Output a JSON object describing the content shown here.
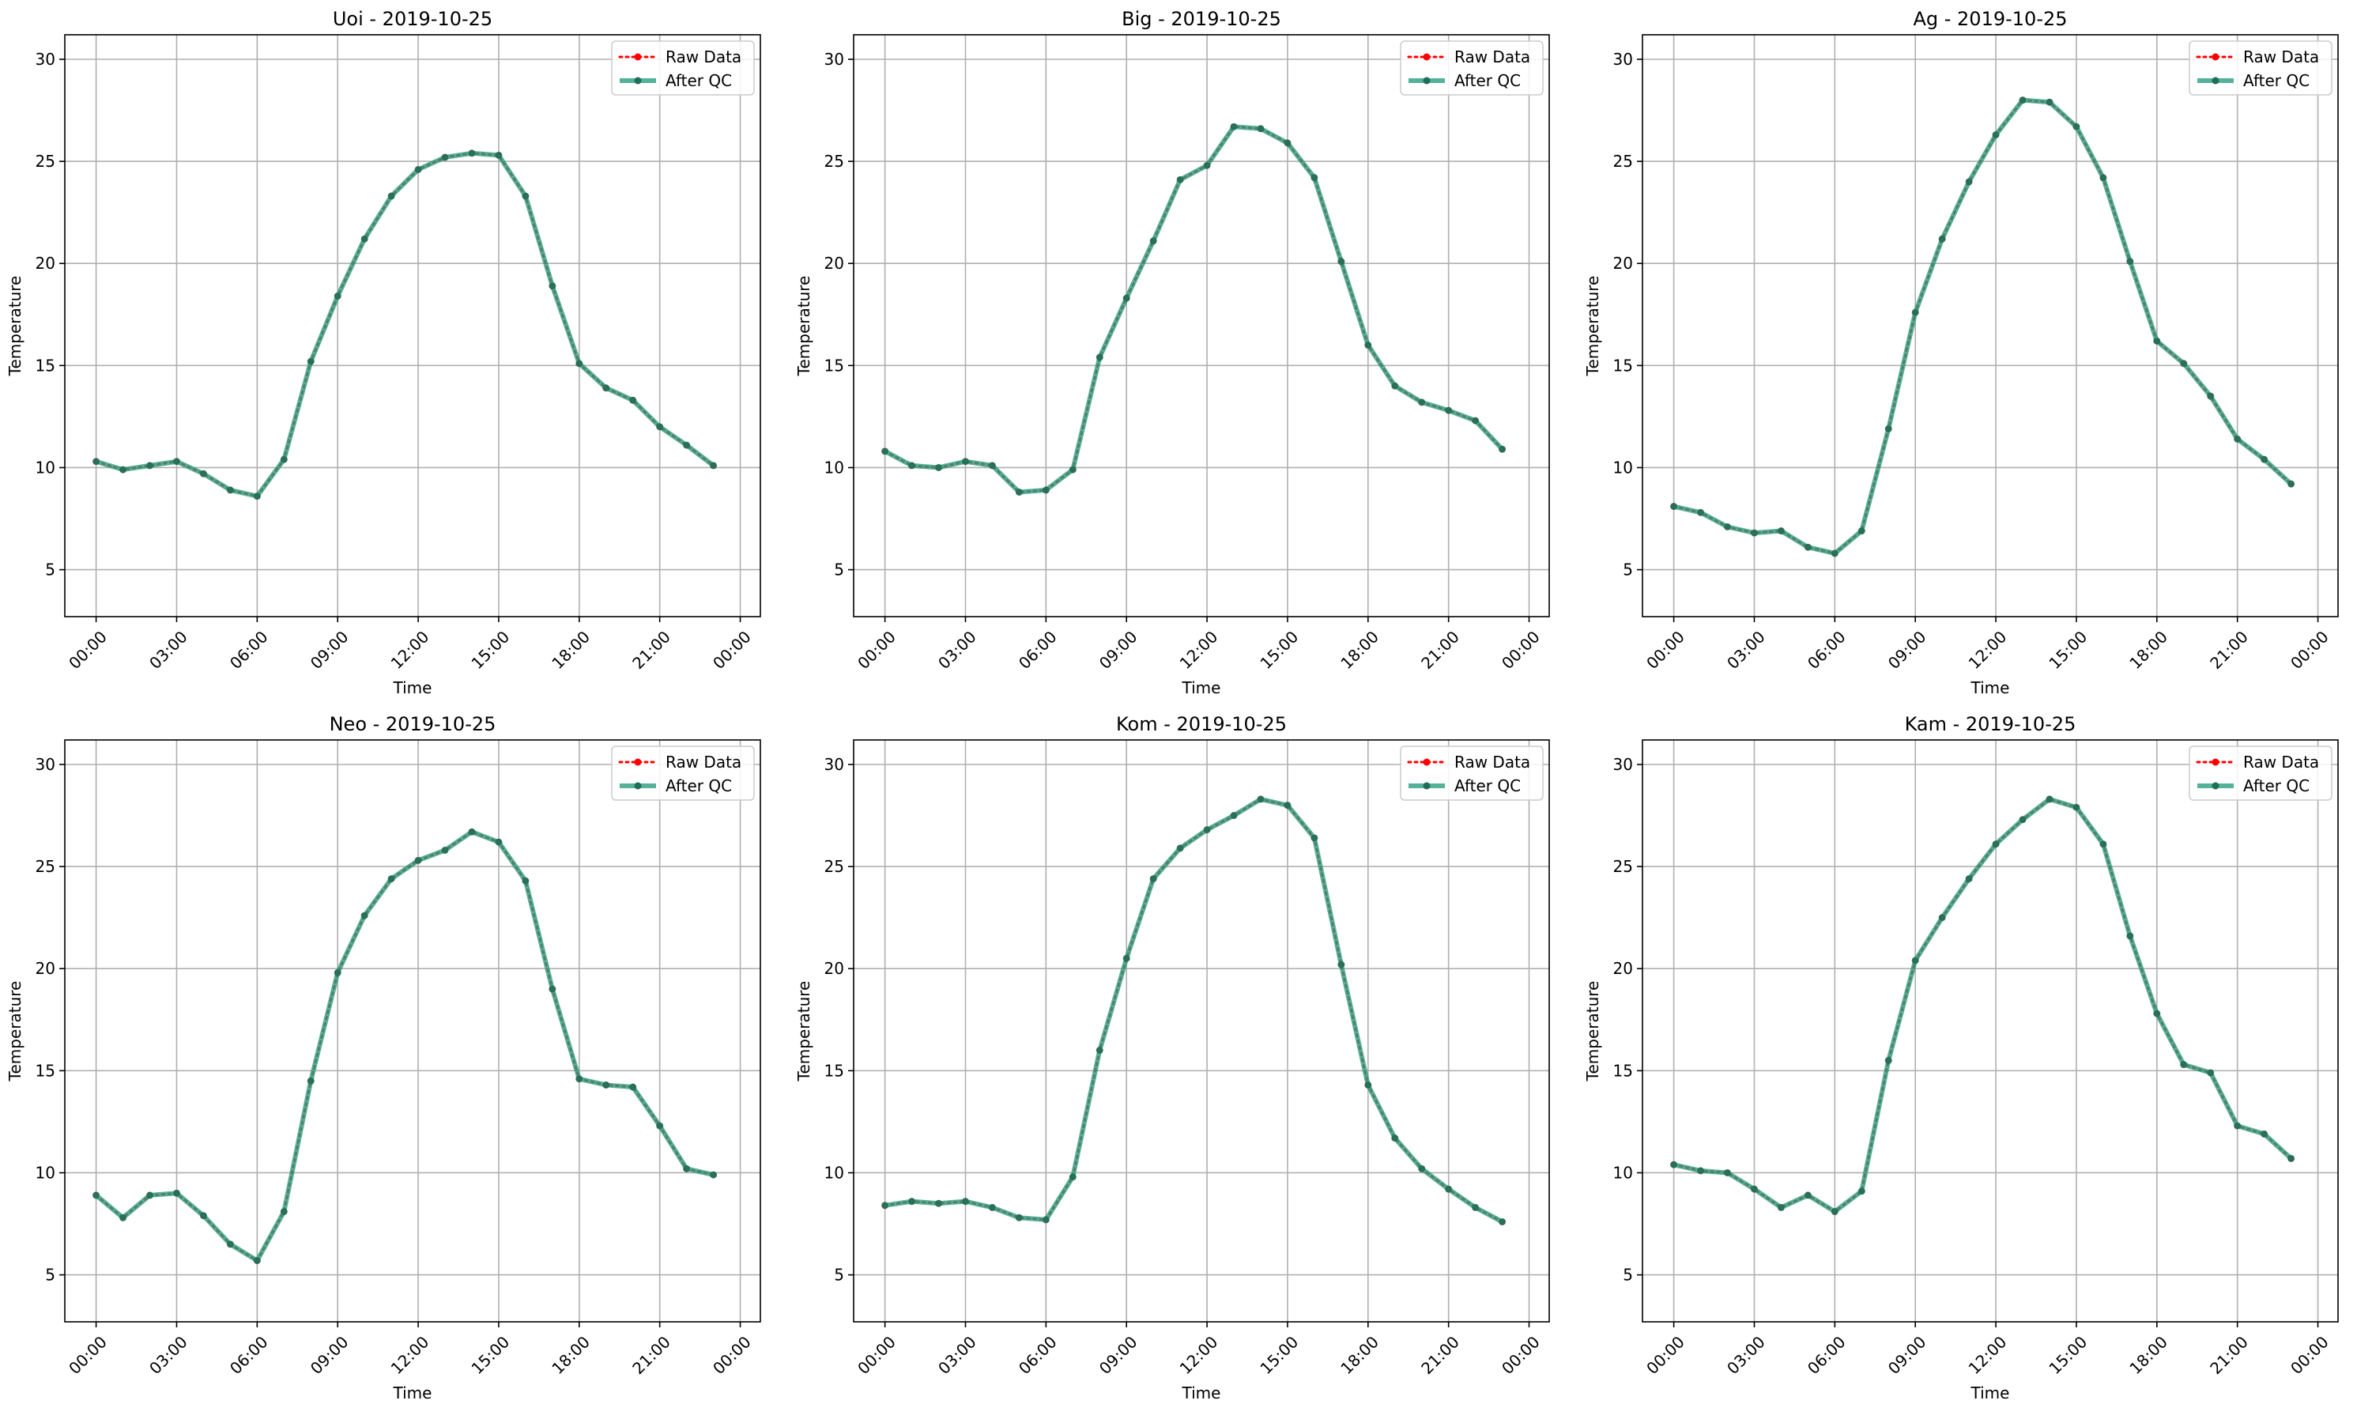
{
  "legend": {
    "raw_label": "Raw Data",
    "qc_label": "After QC",
    "position": "upper right"
  },
  "colors": {
    "raw": "#ff0000",
    "qc": "#2a9d7f",
    "grid": "#b0b0b0",
    "axes": "#000000"
  },
  "chart_data": [
    {
      "type": "line",
      "title": "Uoi - 2019-10-25",
      "xlabel": "Time",
      "ylabel": "Temperature",
      "x_ticks": [
        "00:00",
        "03:00",
        "06:00",
        "09:00",
        "12:00",
        "15:00",
        "18:00",
        "21:00",
        "00:00"
      ],
      "y_ticks": [
        5,
        10,
        15,
        20,
        25,
        30
      ],
      "xlim": [
        "2019-10-24 22:50",
        "2019-10-26 00:45"
      ],
      "ylim": [
        2.7,
        31.2
      ],
      "grid": true,
      "x": [
        "00:00",
        "01:00",
        "02:00",
        "03:00",
        "04:00",
        "05:00",
        "06:00",
        "07:00",
        "08:00",
        "09:00",
        "10:00",
        "11:00",
        "12:00",
        "13:00",
        "14:00",
        "15:00",
        "16:00",
        "17:00",
        "18:00",
        "19:00",
        "20:00",
        "21:00",
        "22:00",
        "23:00"
      ],
      "series": [
        {
          "name": "Raw Data",
          "values": [
            10.3,
            9.9,
            10.1,
            10.3,
            9.7,
            8.9,
            8.6,
            10.4,
            15.2,
            18.4,
            21.2,
            23.3,
            24.6,
            25.2,
            25.4,
            25.3,
            23.3,
            18.9,
            15.1,
            13.9,
            13.3,
            12.0,
            11.1,
            10.1
          ]
        },
        {
          "name": "After QC",
          "values": [
            10.3,
            9.9,
            10.1,
            10.3,
            9.7,
            8.9,
            8.6,
            10.4,
            15.2,
            18.4,
            21.2,
            23.3,
            24.6,
            25.2,
            25.4,
            25.3,
            23.3,
            18.9,
            15.1,
            13.9,
            13.3,
            12.0,
            11.1,
            10.1
          ]
        }
      ]
    },
    {
      "type": "line",
      "title": "Big - 2019-10-25",
      "xlabel": "Time",
      "ylabel": "Temperature",
      "x_ticks": [
        "00:00",
        "03:00",
        "06:00",
        "09:00",
        "12:00",
        "15:00",
        "18:00",
        "21:00",
        "00:00"
      ],
      "y_ticks": [
        5,
        10,
        15,
        20,
        25,
        30
      ],
      "xlim": [
        "2019-10-24 22:50",
        "2019-10-26 00:45"
      ],
      "ylim": [
        2.7,
        31.2
      ],
      "grid": true,
      "x": [
        "00:00",
        "01:00",
        "02:00",
        "03:00",
        "04:00",
        "05:00",
        "06:00",
        "07:00",
        "08:00",
        "09:00",
        "10:00",
        "11:00",
        "12:00",
        "13:00",
        "14:00",
        "15:00",
        "16:00",
        "17:00",
        "18:00",
        "19:00",
        "20:00",
        "21:00",
        "22:00",
        "23:00"
      ],
      "series": [
        {
          "name": "Raw Data",
          "values": [
            10.8,
            10.1,
            10.0,
            10.3,
            10.1,
            8.8,
            8.9,
            9.9,
            15.4,
            18.3,
            21.1,
            24.1,
            24.8,
            26.7,
            26.6,
            25.9,
            24.2,
            20.1,
            16.0,
            14.0,
            13.2,
            12.8,
            12.3,
            10.9
          ]
        },
        {
          "name": "After QC",
          "values": [
            10.8,
            10.1,
            10.0,
            10.3,
            10.1,
            8.8,
            8.9,
            9.9,
            15.4,
            18.3,
            21.1,
            24.1,
            24.8,
            26.7,
            26.6,
            25.9,
            24.2,
            20.1,
            16.0,
            14.0,
            13.2,
            12.8,
            12.3,
            10.9
          ]
        }
      ]
    },
    {
      "type": "line",
      "title": "Ag - 2019-10-25",
      "xlabel": "Time",
      "ylabel": "Temperature",
      "x_ticks": [
        "00:00",
        "03:00",
        "06:00",
        "09:00",
        "12:00",
        "15:00",
        "18:00",
        "21:00",
        "00:00"
      ],
      "y_ticks": [
        5,
        10,
        15,
        20,
        25,
        30
      ],
      "xlim": [
        "2019-10-24 22:50",
        "2019-10-26 00:45"
      ],
      "ylim": [
        2.7,
        31.2
      ],
      "grid": true,
      "x": [
        "00:00",
        "01:00",
        "02:00",
        "03:00",
        "04:00",
        "05:00",
        "06:00",
        "07:00",
        "08:00",
        "09:00",
        "10:00",
        "11:00",
        "12:00",
        "13:00",
        "14:00",
        "15:00",
        "16:00",
        "17:00",
        "18:00",
        "19:00",
        "20:00",
        "21:00",
        "22:00",
        "23:00"
      ],
      "series": [
        {
          "name": "Raw Data",
          "values": [
            8.1,
            7.8,
            7.1,
            6.8,
            6.9,
            6.1,
            5.8,
            6.9,
            11.9,
            17.6,
            21.2,
            24.0,
            26.3,
            28.0,
            27.9,
            26.7,
            24.2,
            20.1,
            16.2,
            15.1,
            13.5,
            11.4,
            10.4,
            9.2
          ]
        },
        {
          "name": "After QC",
          "values": [
            8.1,
            7.8,
            7.1,
            6.8,
            6.9,
            6.1,
            5.8,
            6.9,
            11.9,
            17.6,
            21.2,
            24.0,
            26.3,
            28.0,
            27.9,
            26.7,
            24.2,
            20.1,
            16.2,
            15.1,
            13.5,
            11.4,
            10.4,
            9.2
          ]
        }
      ]
    },
    {
      "type": "line",
      "title": "Neo - 2019-10-25",
      "xlabel": "Time",
      "ylabel": "Temperature",
      "x_ticks": [
        "00:00",
        "03:00",
        "06:00",
        "09:00",
        "12:00",
        "15:00",
        "18:00",
        "21:00",
        "00:00"
      ],
      "y_ticks": [
        5,
        10,
        15,
        20,
        25,
        30
      ],
      "xlim": [
        "2019-10-24 22:50",
        "2019-10-26 00:45"
      ],
      "ylim": [
        2.7,
        31.2
      ],
      "grid": true,
      "x": [
        "00:00",
        "01:00",
        "02:00",
        "03:00",
        "04:00",
        "05:00",
        "06:00",
        "07:00",
        "08:00",
        "09:00",
        "10:00",
        "11:00",
        "12:00",
        "13:00",
        "14:00",
        "15:00",
        "16:00",
        "17:00",
        "18:00",
        "19:00",
        "20:00",
        "21:00",
        "22:00",
        "23:00"
      ],
      "series": [
        {
          "name": "Raw Data",
          "values": [
            8.9,
            7.8,
            8.9,
            9.0,
            7.9,
            6.5,
            5.7,
            8.1,
            14.5,
            19.8,
            22.6,
            24.4,
            25.3,
            25.8,
            26.7,
            26.2,
            24.3,
            19.0,
            14.6,
            14.3,
            14.2,
            12.3,
            10.2,
            9.9
          ]
        },
        {
          "name": "After QC",
          "values": [
            8.9,
            7.8,
            8.9,
            9.0,
            7.9,
            6.5,
            5.7,
            8.1,
            14.5,
            19.8,
            22.6,
            24.4,
            25.3,
            25.8,
            26.7,
            26.2,
            24.3,
            19.0,
            14.6,
            14.3,
            14.2,
            12.3,
            10.2,
            9.9
          ]
        }
      ]
    },
    {
      "type": "line",
      "title": "Kom - 2019-10-25",
      "xlabel": "Time",
      "ylabel": "Temperature",
      "x_ticks": [
        "00:00",
        "03:00",
        "06:00",
        "09:00",
        "12:00",
        "15:00",
        "18:00",
        "21:00",
        "00:00"
      ],
      "y_ticks": [
        5,
        10,
        15,
        20,
        25,
        30
      ],
      "xlim": [
        "2019-10-24 22:50",
        "2019-10-26 00:45"
      ],
      "ylim": [
        2.7,
        31.2
      ],
      "grid": true,
      "x": [
        "00:00",
        "01:00",
        "02:00",
        "03:00",
        "04:00",
        "05:00",
        "06:00",
        "07:00",
        "08:00",
        "09:00",
        "10:00",
        "11:00",
        "12:00",
        "13:00",
        "14:00",
        "15:00",
        "16:00",
        "17:00",
        "18:00",
        "19:00",
        "20:00",
        "21:00",
        "22:00",
        "23:00"
      ],
      "series": [
        {
          "name": "Raw Data",
          "values": [
            8.4,
            8.6,
            8.5,
            8.6,
            8.3,
            7.8,
            7.7,
            9.8,
            16.0,
            20.5,
            24.4,
            25.9,
            26.8,
            27.5,
            28.3,
            28.0,
            26.4,
            20.2,
            14.3,
            11.7,
            10.2,
            9.2,
            8.3,
            7.6
          ]
        },
        {
          "name": "After QC",
          "values": [
            8.4,
            8.6,
            8.5,
            8.6,
            8.3,
            7.8,
            7.7,
            9.8,
            16.0,
            20.5,
            24.4,
            25.9,
            26.8,
            27.5,
            28.3,
            28.0,
            26.4,
            20.2,
            14.3,
            11.7,
            10.2,
            9.2,
            8.3,
            7.6
          ]
        }
      ]
    },
    {
      "type": "line",
      "title": "Kam - 2019-10-25",
      "xlabel": "Time",
      "ylabel": "Temperature",
      "x_ticks": [
        "00:00",
        "03:00",
        "06:00",
        "09:00",
        "12:00",
        "15:00",
        "18:00",
        "21:00",
        "00:00"
      ],
      "y_ticks": [
        5,
        10,
        15,
        20,
        25,
        30
      ],
      "xlim": [
        "2019-10-24 22:50",
        "2019-10-26 00:45"
      ],
      "ylim": [
        2.7,
        31.2
      ],
      "grid": true,
      "x": [
        "00:00",
        "01:00",
        "02:00",
        "03:00",
        "04:00",
        "05:00",
        "06:00",
        "07:00",
        "08:00",
        "09:00",
        "10:00",
        "11:00",
        "12:00",
        "13:00",
        "14:00",
        "15:00",
        "16:00",
        "17:00",
        "18:00",
        "19:00",
        "20:00",
        "21:00",
        "22:00",
        "23:00"
      ],
      "series": [
        {
          "name": "Raw Data",
          "values": [
            10.4,
            10.1,
            10.0,
            9.2,
            8.3,
            8.9,
            8.1,
            9.1,
            15.5,
            20.4,
            22.5,
            24.4,
            26.1,
            27.3,
            28.3,
            27.9,
            26.1,
            21.6,
            17.8,
            15.3,
            14.9,
            12.3,
            11.9,
            10.7
          ]
        },
        {
          "name": "After QC",
          "values": [
            10.4,
            10.1,
            10.0,
            9.2,
            8.3,
            8.9,
            8.1,
            9.1,
            15.5,
            20.4,
            22.5,
            24.4,
            26.1,
            27.3,
            28.3,
            27.9,
            26.1,
            21.6,
            17.8,
            15.3,
            14.9,
            12.3,
            11.9,
            10.7
          ]
        }
      ]
    }
  ]
}
